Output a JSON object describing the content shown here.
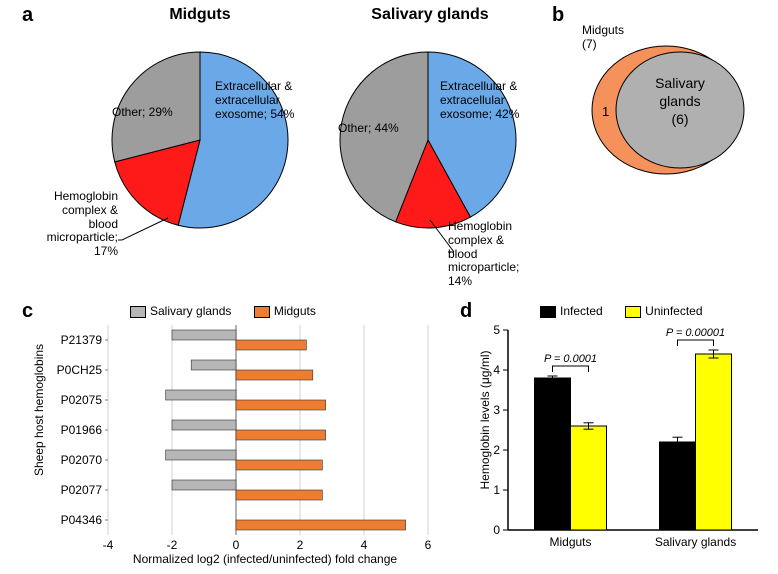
{
  "panel_labels": {
    "a": "a",
    "b": "b",
    "c": "c",
    "d": "d"
  },
  "pies": {
    "titles": {
      "midguts": "Midguts",
      "salivary": "Salivary glands"
    },
    "midguts": {
      "slices": [
        {
          "name": "Extracellular & extracellular exosome",
          "value": 54,
          "color": "#6aa8e8"
        },
        {
          "name": "Hemoglobin complex & blood microparticle",
          "value": 17,
          "color": "#ff1a1a"
        },
        {
          "name": "Other",
          "value": 29,
          "color": "#9d9d9d"
        }
      ],
      "labels": {
        "ext": "Extracellular &\nextracellular\nexosome; 54%",
        "hemo": "Hemoglobin\ncomplex &\nblood\nmicroparticle;\n17%",
        "other": "Other; 29%"
      }
    },
    "salivary": {
      "slices": [
        {
          "name": "Extracellular & extracellular exosome",
          "value": 42,
          "color": "#6aa8e8"
        },
        {
          "name": "Hemoglobin complex & blood microparticle",
          "value": 14,
          "color": "#ff1a1a"
        },
        {
          "name": "Other",
          "value": 44,
          "color": "#9d9d9d"
        }
      ],
      "labels": {
        "ext": "Extracellular &\nextracellular\nexosome; 42%",
        "hemo": "Hemoglobin\ncomplex &\nblood\nmicroparticle;\n14%",
        "other": "Other; 44%"
      }
    },
    "border_color": "#000000",
    "radius": 88
  },
  "venn": {
    "midguts_label": "Midguts\n(7)",
    "salivary_label": "Salivary\nglands\n(6)",
    "unique": "1",
    "midguts_color": "#f5915a",
    "salivary_color": "#b0b0b0",
    "border": "#000000"
  },
  "barC": {
    "ylabel": "Sheep host hemoglobins",
    "xlabel": "Normalized log2 (infected/uninfected) fold change",
    "legend": {
      "salivary": "Salivary glands",
      "midguts": "Midguts"
    },
    "colors": {
      "salivary": "#b6b6b6",
      "midguts": "#ee7d31"
    },
    "rows": [
      {
        "id": "P21379",
        "sal": -2.0,
        "mid": 2.2
      },
      {
        "id": "P0CH25",
        "sal": -1.4,
        "mid": 2.4
      },
      {
        "id": "P02075",
        "sal": -2.2,
        "mid": 2.8
      },
      {
        "id": "P01966",
        "sal": -2.0,
        "mid": 2.8
      },
      {
        "id": "P02070",
        "sal": -2.2,
        "mid": 2.7
      },
      {
        "id": "P02077",
        "sal": -2.0,
        "mid": 2.7
      },
      {
        "id": "P04346",
        "sal": 0,
        "mid": 5.3
      }
    ],
    "xticks": [
      -4,
      -2,
      0,
      2,
      4,
      6
    ],
    "grid_color": "#d0d0d0",
    "axis_color": "#808080",
    "bar_border": "#333333"
  },
  "barD": {
    "ylabel": "Hemoglobin levels (μg/ml)",
    "legend": {
      "infected": "Infected",
      "uninfected": "Uninfected"
    },
    "colors": {
      "infected": "#000000",
      "uninfected": "#ffff00"
    },
    "groups": [
      {
        "name": "Midguts",
        "infected": 3.8,
        "uninfected": 2.6,
        "inf_err": 0.05,
        "uninf_err": 0.08,
        "p": "P = 0.0001"
      },
      {
        "name": "Salivary glands",
        "infected": 2.2,
        "uninfected": 4.4,
        "inf_err": 0.12,
        "uninf_err": 0.1,
        "p": "P = 0.00001"
      }
    ],
    "yticks": [
      0,
      1,
      2,
      3,
      4,
      5
    ],
    "axis_color": "#000000",
    "bar_border": "#000000"
  }
}
